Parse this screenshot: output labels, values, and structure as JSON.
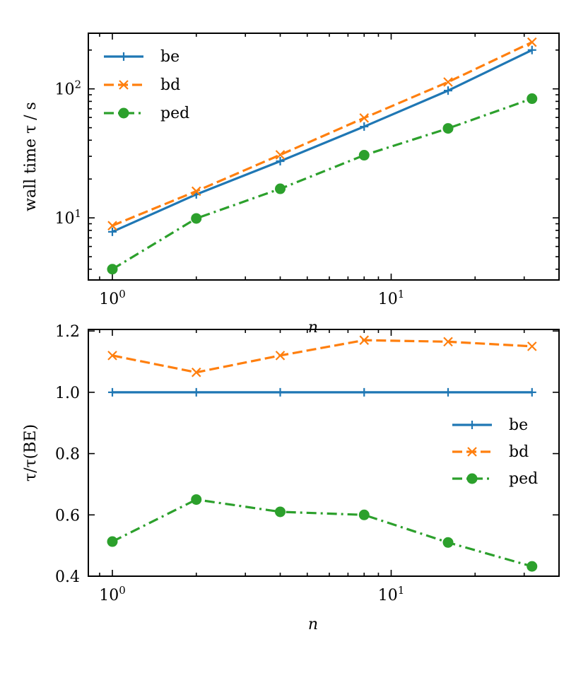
{
  "chart_data": [
    {
      "type": "line",
      "xscale": "log",
      "yscale": "log",
      "xlabel": "n",
      "ylabel": "wall time τ / s",
      "xlim": [
        0.82,
        40
      ],
      "ylim": [
        3.3,
        270
      ],
      "x": [
        1,
        2,
        4,
        8,
        16,
        32
      ],
      "xticks": [
        {
          "value": 1,
          "base": "10",
          "exp": "0"
        },
        {
          "value": 10,
          "base": "10",
          "exp": "1"
        }
      ],
      "yticks": [
        {
          "value": 10,
          "base": "10",
          "exp": "1"
        },
        {
          "value": 100,
          "base": "10",
          "exp": "2"
        }
      ],
      "legend_position": "top-left",
      "series": [
        {
          "name": "be",
          "color": "#1f77b4",
          "marker": "plus",
          "linestyle": "solid",
          "values": [
            7.8,
            15.2,
            27.5,
            51,
            97,
            200
          ]
        },
        {
          "name": "bd",
          "color": "#ff7f0e",
          "marker": "x",
          "linestyle": "dashed",
          "values": [
            8.7,
            16.1,
            30.8,
            59.5,
            113,
            230
          ]
        },
        {
          "name": "ped",
          "color": "#2ca02c",
          "marker": "circle",
          "linestyle": "dashdot",
          "values": [
            4.0,
            9.9,
            16.8,
            30.6,
            49.4,
            84
          ]
        }
      ]
    },
    {
      "type": "line",
      "xscale": "log",
      "yscale": "linear",
      "xlabel": "n",
      "ylabel": "τ/τ(BE)",
      "xlim": [
        0.82,
        40
      ],
      "ylim": [
        0.4,
        1.205
      ],
      "x": [
        1,
        2,
        4,
        8,
        16,
        32
      ],
      "xticks": [
        {
          "value": 1,
          "base": "10",
          "exp": "0"
        },
        {
          "value": 10,
          "base": "10",
          "exp": "1"
        }
      ],
      "yticks": [
        {
          "value": 0.4,
          "label": "0.4"
        },
        {
          "value": 0.6,
          "label": "0.6"
        },
        {
          "value": 0.8,
          "label": "0.8"
        },
        {
          "value": 1.0,
          "label": "1.0"
        },
        {
          "value": 1.2,
          "label": "1.2"
        }
      ],
      "legend_position": "center-right",
      "series": [
        {
          "name": "be",
          "color": "#1f77b4",
          "marker": "plus",
          "linestyle": "solid",
          "values": [
            1.0,
            1.0,
            1.0,
            1.0,
            1.0,
            1.0
          ]
        },
        {
          "name": "bd",
          "color": "#ff7f0e",
          "marker": "x",
          "linestyle": "dashed",
          "values": [
            1.12,
            1.065,
            1.12,
            1.17,
            1.165,
            1.15
          ]
        },
        {
          "name": "ped",
          "color": "#2ca02c",
          "marker": "circle",
          "linestyle": "dashdot",
          "values": [
            0.513,
            0.65,
            0.61,
            0.6,
            0.51,
            0.432
          ]
        }
      ]
    }
  ]
}
